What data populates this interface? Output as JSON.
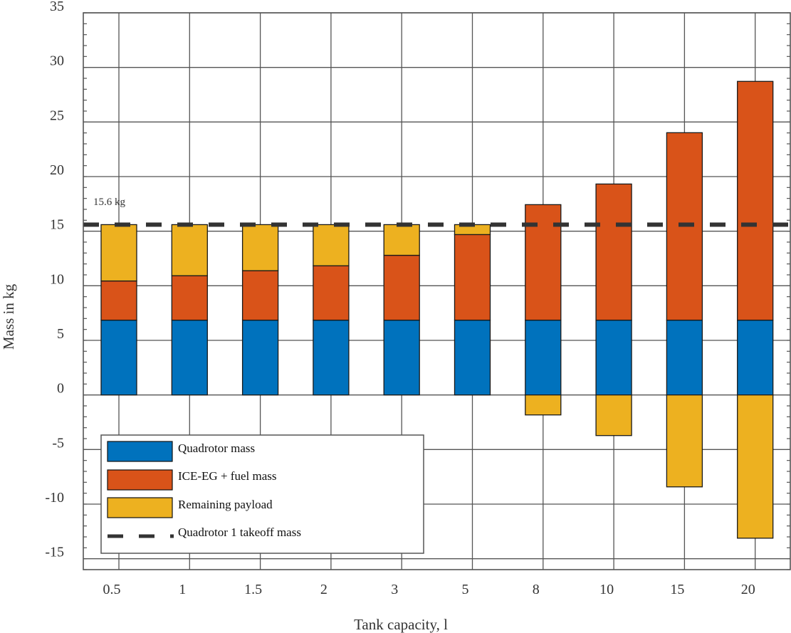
{
  "chart_data": {
    "type": "bar",
    "stacked": true,
    "title": "",
    "xlabel": "Tank capacity, l",
    "ylabel": "Mass in kg",
    "categories": [
      "0.5",
      "1",
      "1.5",
      "2",
      "3",
      "5",
      "8",
      "10",
      "15",
      "20"
    ],
    "ylim": [
      -16,
      35
    ],
    "yticks": [
      35,
      30,
      25,
      20,
      15,
      10,
      5,
      0,
      -5,
      -10,
      -15
    ],
    "grid": true,
    "series": [
      {
        "name": "Quadrotor mass",
        "color": "#0072BD",
        "values": [
          6.85,
          6.85,
          6.85,
          6.85,
          6.85,
          6.85,
          6.85,
          6.85,
          6.85,
          6.85
        ]
      },
      {
        "name": "ICE-EG + fuel mass",
        "color": "#D95319",
        "values": [
          3.59,
          4.07,
          4.53,
          4.98,
          5.94,
          7.84,
          10.58,
          12.47,
          17.17,
          21.87
        ]
      },
      {
        "name": "Remaining payload",
        "color": "#EDB120",
        "values": [
          5.16,
          4.68,
          4.22,
          3.77,
          2.81,
          0.91,
          -1.83,
          -3.72,
          -8.42,
          -13.12
        ]
      }
    ],
    "reference_line": {
      "name": "Quadrotor 1 takeoff mass",
      "value": 15.6,
      "style": "dashed",
      "color": "#333333",
      "annotation": "15.6 kg"
    },
    "legend": {
      "placement": "bottom-left",
      "entries": [
        "Quadrotor mass",
        "ICE-EG + fuel mass",
        "Remaining payload",
        "Quadrotor 1 takeoff mass"
      ]
    }
  }
}
